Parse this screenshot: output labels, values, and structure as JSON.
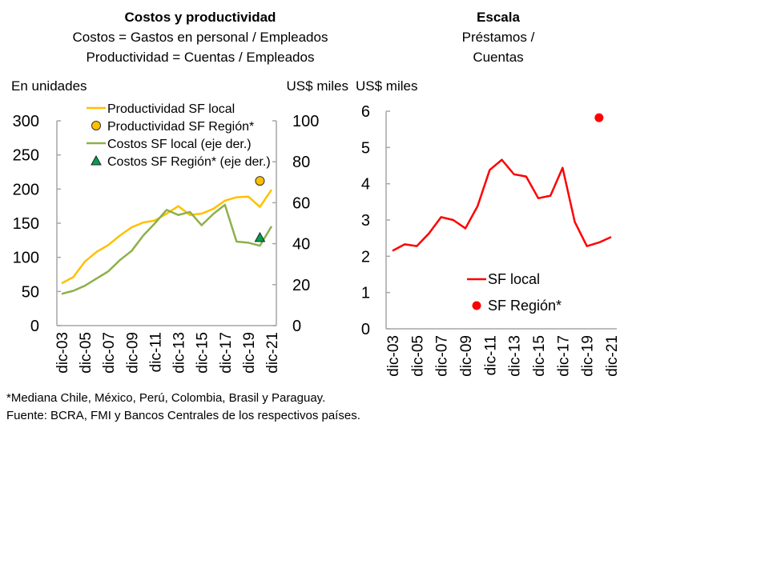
{
  "chart_data": [
    {
      "type": "line",
      "title": "Costos y productividad",
      "subtitle": [
        "Costos = Gastos en personal / Empleados",
        "Productividad = Cuentas / Empleados"
      ],
      "ylabel": "En unidades",
      "y2label": "US$ miles",
      "ylim": [
        0,
        300
      ],
      "y2lim": [
        0,
        100
      ],
      "yticks": [
        "0",
        "50",
        "100",
        "150",
        "200",
        "250",
        "300"
      ],
      "y2ticks": [
        "0",
        "20",
        "40",
        "60",
        "80",
        "100"
      ],
      "x": [
        2003,
        2004,
        2005,
        2006,
        2007,
        2008,
        2009,
        2010,
        2011,
        2012,
        2013,
        2014,
        2015,
        2016,
        2017,
        2018,
        2019,
        2020,
        2021
      ],
      "xticks": [
        "dic-03",
        "dic-05",
        "dic-07",
        "dic-09",
        "dic-11",
        "dic-13",
        "dic-15",
        "dic-17",
        "dic-19",
        "dic-21"
      ],
      "grid": false,
      "legend": "top",
      "series": [
        {
          "name": "Productividad SF local",
          "axis": "left",
          "kind": "line",
          "color": "#FFC000",
          "values": [
            62,
            71,
            94,
            108,
            118,
            132,
            144,
            151,
            154,
            164,
            175,
            162,
            164,
            171,
            183,
            188,
            189,
            174,
            199
          ]
        },
        {
          "name": "Productividad SF Región*",
          "axis": "left",
          "kind": "circle",
          "color": "#FFC000",
          "points": [
            {
              "x": 2020,
              "y": 212
            }
          ]
        },
        {
          "name": "Costos SF local (eje der.)",
          "axis": "right",
          "kind": "line",
          "color": "#8DB04A",
          "values": [
            15.5,
            17,
            19.5,
            23,
            26.5,
            32,
            36.5,
            44,
            50,
            56.5,
            54,
            55.5,
            49,
            54.5,
            59,
            41,
            40.5,
            39,
            48.5
          ]
        },
        {
          "name": "Costos SF Región* (eje der.)",
          "axis": "right",
          "kind": "triangle",
          "color": "#00A050",
          "points": [
            {
              "x": 2020,
              "y": 43
            }
          ]
        }
      ]
    },
    {
      "type": "line",
      "title": "Escala",
      "subtitle": [
        "Préstamos /",
        "Cuentas"
      ],
      "ylabel": "US$ miles",
      "ylim": [
        0,
        6
      ],
      "yticks": [
        "0",
        "1",
        "2",
        "3",
        "4",
        "5",
        "6"
      ],
      "x": [
        2003,
        2004,
        2005,
        2006,
        2007,
        2008,
        2009,
        2010,
        2011,
        2012,
        2013,
        2014,
        2015,
        2016,
        2017,
        2018,
        2019,
        2020,
        2021
      ],
      "xticks": [
        "dic-03",
        "dic-05",
        "dic-07",
        "dic-09",
        "dic-11",
        "dic-13",
        "dic-15",
        "dic-17",
        "dic-19",
        "dic-21"
      ],
      "grid": false,
      "legend": "bottom-center",
      "series": [
        {
          "name": "SF local",
          "kind": "line",
          "color": "#FF0000",
          "values": [
            2.15,
            2.33,
            2.28,
            2.63,
            3.08,
            3.0,
            2.77,
            3.38,
            4.38,
            4.66,
            4.26,
            4.2,
            3.6,
            3.67,
            4.44,
            2.95,
            2.28,
            2.38,
            2.53
          ]
        },
        {
          "name": "SF Región*",
          "kind": "circle",
          "color": "#FF0000",
          "points": [
            {
              "x": 2020,
              "y": 5.82
            }
          ]
        }
      ]
    }
  ],
  "notes": {
    "footnote": "*Mediana Chile, México, Perú, Colombia, Brasil y Paraguay.",
    "source": "Fuente: BCRA, FMI y Bancos Centrales de los respectivos países."
  }
}
